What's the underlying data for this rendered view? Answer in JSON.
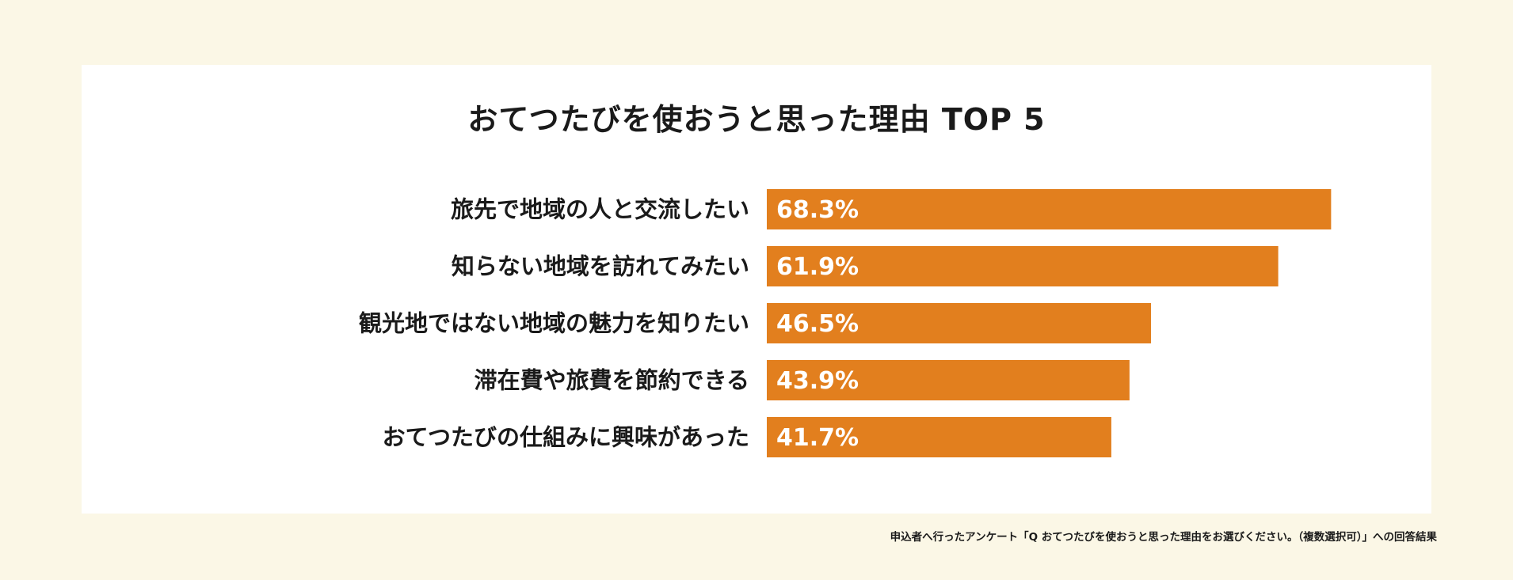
{
  "chart_data": {
    "type": "bar",
    "orientation": "horizontal",
    "title": "おてつたびを使おうと思った理由 TOP 5",
    "categories": [
      "旅先で地域の人と交流したい",
      "知らない地域を訪れてみたい",
      "観光地ではない地域の魅力を知りたい",
      "滞在費や旅費を節約できる",
      "おてつたびの仕組みに興味があった"
    ],
    "values": [
      68.3,
      61.9,
      46.5,
      43.9,
      41.7
    ],
    "value_labels": [
      "68.3%",
      "61.9%",
      "46.5%",
      "43.9%",
      "41.7%"
    ],
    "xlim": [
      0,
      100
    ],
    "grid": false,
    "bar_color": "#e27f1e"
  },
  "footnote": "申込者へ行ったアンケート「Q おてつたびを使おうと思った理由をお選びください。（複数選択可）」への回答結果",
  "colors": {
    "background": "#fbf7e6",
    "card": "#ffffff",
    "text": "#1a1a1a",
    "value_text": "#ffffff"
  }
}
